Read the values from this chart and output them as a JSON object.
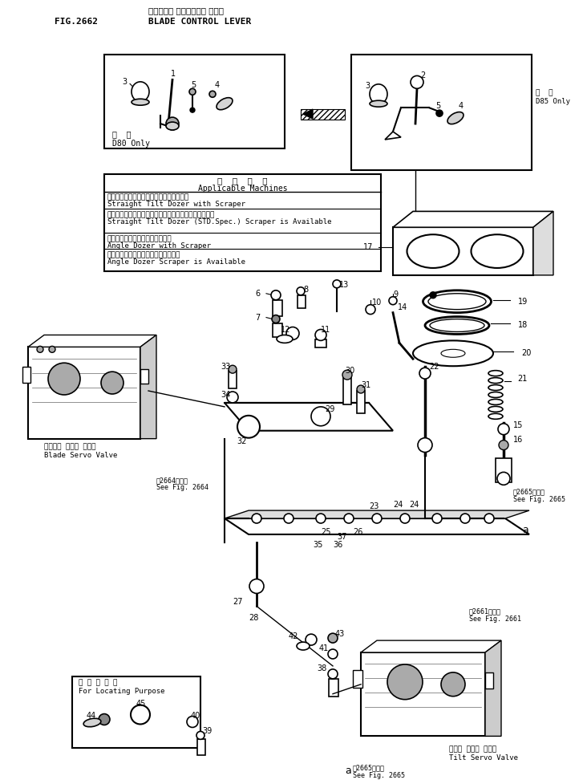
{
  "title_japanese": "ブレード　 コントロール レバー",
  "title_english": "BLADE CONTROL LEVER",
  "fig_number": "FIG.2662",
  "bg": "#ffffff",
  "lc": "#000000",
  "table_header_jp": "適  用  機  械",
  "table_header_en": "Applicable Machines",
  "table_rows": [
    [
      "ストレートチルトドーザスクレーパ携帯車",
      "Straight Tilt Dozer with Scraper"
    ],
    [
      "ストレートチルトドーザ標準仕様スクレーパ携帯可能車",
      "Straight Tilt Dozer (STD.Spec.) Scraper is Available"
    ],
    [
      "アングルドーザスクレーパ携帯車",
      "Angle Dozer with Scraper"
    ],
    [
      "アングルドーザスクレーパ携帯可能車",
      "Angle Dozer Scraper is Available"
    ]
  ],
  "d80_label": "専  用\nD80 Only",
  "d85_label": "専  山\nD85 Only",
  "blade_sv_jp": "ブレード サーボ バルブ",
  "blade_sv_en": "Blade Servo Valve",
  "tilt_sv_jp": "チルト サーボ バルブ",
  "tilt_sv_en": "Tilt Servo Valve",
  "see2664_jp": "第2664図参照",
  "see2664_en": "See Fig. 2664",
  "see2665_jp": "第2665図参照",
  "see2665_en": "See Fig. 2665",
  "see2661_jp": "第2661図参照",
  "see2661_en": "See Fig. 2661"
}
